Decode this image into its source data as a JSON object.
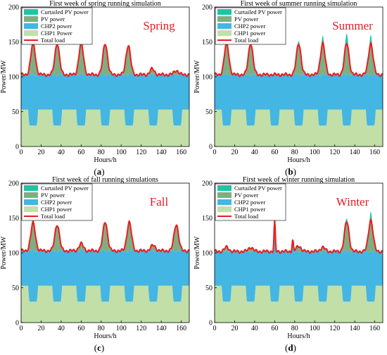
{
  "colors": {
    "curtailed": "#1fc5a2",
    "pv": "#7fae84",
    "chp2": "#43b6e3",
    "chp1": "#c2dfa8",
    "load": "#ee1b1b",
    "season_label": "#e51c23"
  },
  "legend_labels": {
    "curtailed": "Curtailed PV power",
    "pv": "PV power",
    "chp2": "CHP2 power",
    "chp1": "CHP1 power",
    "load": "Total load"
  },
  "chart_data": [
    {
      "type": "area",
      "id": "spring",
      "title": "First week of spring running simulation",
      "season_label": "Spring",
      "sublabel": "a",
      "legend": [
        "Curtailed PV power",
        "PV power",
        "CHP2 power",
        "CHP1 Power",
        "Total load"
      ],
      "xlabel": "Hours/h",
      "ylabel": "Power/MW",
      "xlim": [
        0,
        168
      ],
      "ylim": [
        0,
        200
      ],
      "xticks": [
        0,
        20,
        40,
        60,
        80,
        100,
        120,
        140,
        160
      ],
      "yticks": [
        0,
        50,
        100,
        150,
        200
      ],
      "base_load": 103,
      "chp1_day_level": 30,
      "chp1_night_level": 53,
      "pv_peaks": [
        {
          "hour": 12,
          "pv": 45,
          "curtailed": 0
        },
        {
          "hour": 36,
          "pv": 45,
          "curtailed": 0
        },
        {
          "hour": 60,
          "pv": 45,
          "curtailed": 0
        },
        {
          "hour": 84,
          "pv": 45,
          "curtailed": 0
        },
        {
          "hour": 107,
          "pv": 42,
          "curtailed": 0
        },
        {
          "hour": 131,
          "pv": 8,
          "curtailed": 0
        },
        {
          "hour": 155,
          "pv": 6,
          "curtailed": 0
        }
      ]
    },
    {
      "type": "area",
      "id": "summer",
      "title": "First week of summer running simulation",
      "season_label": "Summer",
      "sublabel": "b",
      "legend": [
        "Curtailed PV power",
        "PV power",
        "CHP2 power",
        "CHP1 power",
        "Total load"
      ],
      "xlabel": "Hours/h",
      "ylabel": "Power/MW",
      "xlim": [
        0,
        168
      ],
      "ylim": [
        0,
        200
      ],
      "xticks": [
        0,
        20,
        40,
        60,
        80,
        100,
        120,
        140,
        160
      ],
      "yticks": [
        0,
        50,
        100,
        150,
        200
      ],
      "base_load": 103,
      "chp1_day_level": 30,
      "chp1_night_level": 53,
      "pv_peaks": [
        {
          "hour": 12,
          "pv": 45,
          "curtailed": 0
        },
        {
          "hour": 36,
          "pv": 45,
          "curtailed": 0
        },
        {
          "hour": 84,
          "pv": 45,
          "curtailed": 5
        },
        {
          "hour": 108,
          "pv": 45,
          "curtailed": 10
        },
        {
          "hour": 132,
          "pv": 45,
          "curtailed": 15
        },
        {
          "hour": 156,
          "pv": 45,
          "curtailed": 12
        }
      ]
    },
    {
      "type": "area",
      "id": "fall",
      "title": "First week of fall running simulations",
      "season_label": "Fall",
      "sublabel": "c",
      "legend": [
        "Curtailed PV power",
        "PV power",
        "CHP2 power",
        "CHP1 power",
        "Total load"
      ],
      "xlabel": "Hours/h",
      "ylabel": "Power/MW",
      "xlim": [
        0,
        168
      ],
      "ylim": [
        0,
        200
      ],
      "xticks": [
        0,
        20,
        40,
        60,
        80,
        100,
        120,
        140,
        160
      ],
      "yticks": [
        0,
        50,
        100,
        150,
        200
      ],
      "base_load": 103,
      "chp1_day_level": 30,
      "chp1_night_level": 53,
      "pv_peaks": [
        {
          "hour": 12,
          "pv": 40,
          "curtailed": 0
        },
        {
          "hour": 36,
          "pv": 38,
          "curtailed": 0
        },
        {
          "hour": 60,
          "pv": 10,
          "curtailed": 0
        },
        {
          "hour": 84,
          "pv": 42,
          "curtailed": 0
        },
        {
          "hour": 108,
          "pv": 41,
          "curtailed": 0
        },
        {
          "hour": 132,
          "pv": 8,
          "curtailed": 0
        },
        {
          "hour": 155,
          "pv": 38,
          "curtailed": 0
        }
      ]
    },
    {
      "type": "area",
      "id": "winter",
      "title": "First week of winter running simulation",
      "season_label": "Winter",
      "sublabel": "d",
      "legend": [
        "Curtailed PV power",
        "PV power",
        "CHP2 power",
        "CHP1 power",
        "Total load"
      ],
      "xlabel": "Hours/h",
      "ylabel": "Power/MW",
      "xlim": [
        0,
        168
      ],
      "ylim": [
        0,
        200
      ],
      "xticks": [
        0,
        20,
        40,
        60,
        80,
        100,
        120,
        140,
        160
      ],
      "yticks": [
        0,
        50,
        100,
        150,
        200
      ],
      "base_load": 102,
      "chp1_day_level": 30,
      "chp1_night_level": 53,
      "load_spikes": [
        {
          "hour": 60,
          "value": 145
        },
        {
          "hour": 78,
          "value": 118
        }
      ],
      "pv_peaks": [
        {
          "hour": 12,
          "pv": 6,
          "curtailed": 0
        },
        {
          "hour": 36,
          "pv": 6,
          "curtailed": 0
        },
        {
          "hour": 84,
          "pv": 8,
          "curtailed": 0
        },
        {
          "hour": 108,
          "pv": 6,
          "curtailed": 0
        },
        {
          "hour": 132,
          "pv": 43,
          "curtailed": 5
        },
        {
          "hour": 156,
          "pv": 45,
          "curtailed": 12
        }
      ]
    }
  ]
}
